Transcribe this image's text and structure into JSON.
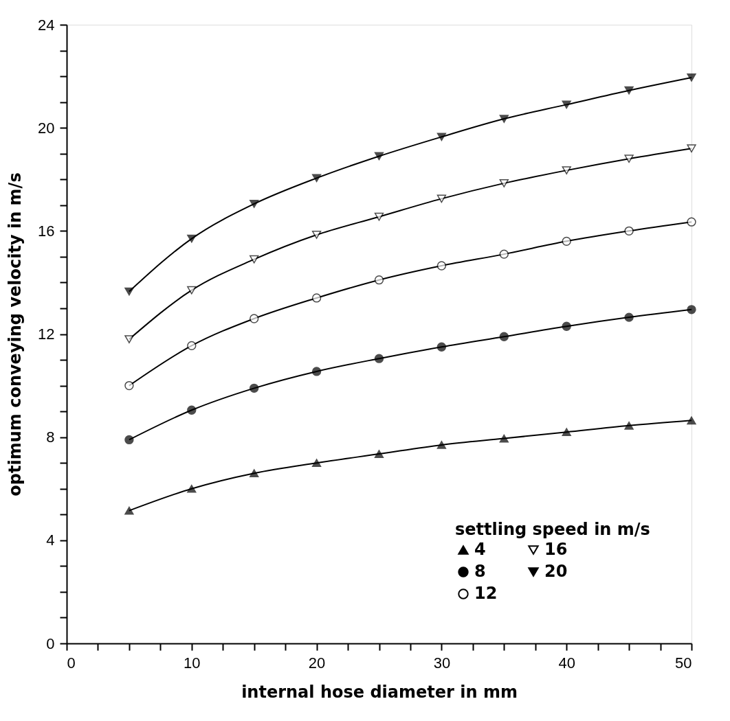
{
  "chart_data": {
    "type": "line",
    "xlabel": "internal hose diameter in mm",
    "ylabel": "optimum conveying velocity in m/s",
    "legend_title": "settling speed in m/s",
    "legend": "bottom right",
    "grid": false,
    "line_style": "solid",
    "x": [
      5,
      10,
      15,
      20,
      25,
      30,
      35,
      40,
      45,
      50
    ],
    "xlim": [
      0,
      50
    ],
    "ylim": [
      0,
      24
    ],
    "xticks": [
      0,
      {
        "value": 2.5,
        "label": null
      },
      {
        "value": 5,
        "label": null
      },
      {
        "value": 7.5,
        "label": null
      },
      10,
      {
        "value": 12.5,
        "label": null
      },
      {
        "value": 15,
        "label": null
      },
      {
        "value": 17.5,
        "label": null
      },
      20,
      {
        "value": 22.5,
        "label": null
      },
      {
        "value": 25,
        "label": null
      },
      {
        "value": 27.5,
        "label": null
      },
      30,
      {
        "value": 32.5,
        "label": null
      },
      {
        "value": 35,
        "label": null
      },
      {
        "value": 37.5,
        "label": null
      },
      40,
      {
        "value": 42.5,
        "label": null
      },
      {
        "value": 45,
        "label": null
      },
      {
        "value": 47.5,
        "label": null
      },
      50
    ],
    "yticks": [
      0,
      {
        "value": 1,
        "label": null
      },
      {
        "value": 2,
        "label": null
      },
      {
        "value": 3,
        "label": null
      },
      4,
      {
        "value": 5,
        "label": null
      },
      {
        "value": 6,
        "label": null
      },
      {
        "value": 7,
        "label": null
      },
      8,
      {
        "value": 9,
        "label": null
      },
      {
        "value": 10,
        "label": null
      },
      {
        "value": 11,
        "label": null
      },
      12,
      {
        "value": 13,
        "label": null
      },
      {
        "value": 14,
        "label": null
      },
      {
        "value": 15,
        "label": null
      },
      16,
      {
        "value": 17,
        "label": null
      },
      {
        "value": 18,
        "label": null
      },
      {
        "value": 19,
        "label": null
      },
      20,
      {
        "value": 21,
        "label": null
      },
      {
        "value": 22,
        "label": null
      },
      {
        "value": 23,
        "label": null
      },
      24
    ],
    "series": [
      {
        "name": "4",
        "color": "#000000",
        "marker": "triangle",
        "values": [
          5.15,
          6.0,
          6.6,
          7.0,
          7.35,
          7.7,
          7.95,
          8.2,
          8.45,
          8.65
        ]
      },
      {
        "name": "8",
        "color": "#000000",
        "marker": "circle",
        "values": [
          7.9,
          9.05,
          9.9,
          10.55,
          11.05,
          11.5,
          11.9,
          12.3,
          12.65,
          12.95
        ]
      },
      {
        "name": "12",
        "color": "#000000",
        "marker": "circle",
        "values": [
          10.0,
          11.55,
          12.6,
          13.4,
          14.1,
          14.65,
          15.1,
          15.6,
          16.0,
          16.35
        ]
      },
      {
        "name": "16",
        "color": "#000000",
        "marker": "triangle",
        "values": [
          11.8,
          13.7,
          14.9,
          15.85,
          16.55,
          17.25,
          17.85,
          18.35,
          18.8,
          19.2
        ]
      },
      {
        "name": "20",
        "color": "#000000",
        "marker": "triangle",
        "values": [
          13.65,
          15.7,
          17.05,
          18.05,
          18.9,
          19.65,
          20.35,
          20.9,
          21.45,
          21.95
        ]
      }
    ]
  }
}
